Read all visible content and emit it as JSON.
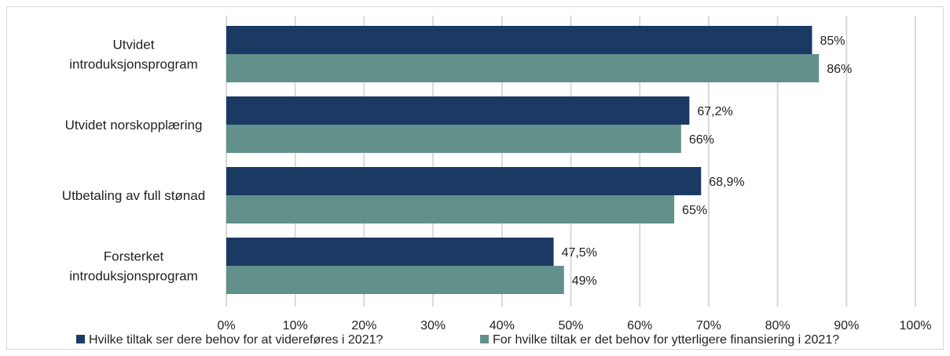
{
  "chart_data": {
    "type": "bar",
    "orientation": "horizontal",
    "categories": [
      [
        "Utvidet",
        "introduksjonsprogram"
      ],
      [
        "Utvidet norskopplæring"
      ],
      [
        "Utbetaling av full stønad"
      ],
      [
        "Forsterket",
        "introduksjonsprogram"
      ]
    ],
    "series": [
      {
        "name": "Hvilke tiltak ser dere behov for at videreføres i 2021?",
        "color": "#1a3a63",
        "values": [
          85,
          67.2,
          68.9,
          47.5
        ],
        "labels": [
          "85%",
          "67,2%",
          "68,9%",
          "47,5%"
        ]
      },
      {
        "name": "For hvilke tiltak er det behov for ytterligere finansiering i 2021?",
        "color": "#62908a",
        "values": [
          86,
          66,
          65,
          49
        ],
        "labels": [
          "86%",
          "66%",
          "65%",
          "49%"
        ]
      }
    ],
    "xlim": [
      0,
      100
    ],
    "xticks": [
      "0%",
      "10%",
      "20%",
      "30%",
      "40%",
      "50%",
      "60%",
      "70%",
      "80%",
      "90%",
      "100%"
    ],
    "grid": true,
    "gridline_color": "#d9d9d9",
    "legend_position": "bottom",
    "title": "",
    "xlabel": "",
    "ylabel": ""
  }
}
